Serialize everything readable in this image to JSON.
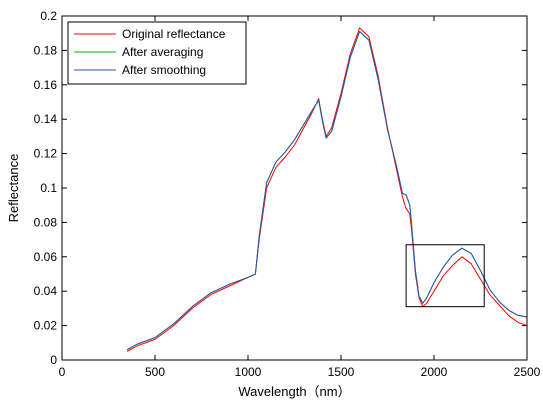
{
  "chart_data": {
    "type": "line",
    "title": "",
    "xlabel": "Wavelength（nm）",
    "ylabel": "Reflectance",
    "xlim": [
      0,
      2500
    ],
    "ylim": [
      0,
      0.2
    ],
    "x_ticks": [
      "0",
      "500",
      "1000",
      "1500",
      "2000",
      "2500"
    ],
    "y_ticks": [
      "0",
      "0.02",
      "0.04",
      "0.06",
      "0.08",
      "0.1",
      "0.12",
      "0.14",
      "0.16",
      "0.18",
      "0.2"
    ],
    "grid": false,
    "legend_position": "top-left",
    "series": [
      {
        "name": "Original reflectance",
        "color": "#ff0000",
        "x": [
          350,
          400,
          500,
          600,
          700,
          800,
          900,
          1000,
          1040,
          1060,
          1100,
          1150,
          1200,
          1250,
          1300,
          1350,
          1380,
          1400,
          1420,
          1450,
          1500,
          1550,
          1600,
          1650,
          1700,
          1750,
          1800,
          1830,
          1850,
          1870,
          1880,
          1900,
          1920,
          1940,
          1960,
          2000,
          2050,
          2100,
          2150,
          2200,
          2250,
          2300,
          2350,
          2400,
          2450,
          2500
        ],
        "y": [
          0.005,
          0.008,
          0.012,
          0.02,
          0.03,
          0.038,
          0.043,
          0.048,
          0.05,
          0.07,
          0.1,
          0.112,
          0.118,
          0.125,
          0.135,
          0.145,
          0.152,
          0.14,
          0.13,
          0.135,
          0.155,
          0.178,
          0.193,
          0.188,
          0.165,
          0.135,
          0.11,
          0.095,
          0.088,
          0.085,
          0.075,
          0.05,
          0.036,
          0.031,
          0.033,
          0.04,
          0.049,
          0.055,
          0.06,
          0.056,
          0.047,
          0.038,
          0.032,
          0.026,
          0.022,
          0.02
        ]
      },
      {
        "name": "After averaging",
        "color": "#00b000",
        "x": [
          350,
          400,
          500,
          600,
          700,
          800,
          900,
          1000,
          1040,
          1060,
          1100,
          1150,
          1200,
          1250,
          1300,
          1350,
          1380,
          1400,
          1420,
          1450,
          1500,
          1550,
          1600,
          1650,
          1700,
          1750,
          1800,
          1830,
          1850,
          1870,
          1880,
          1900,
          1920,
          1940,
          1960,
          2000,
          2050,
          2100,
          2150,
          2200,
          2250,
          2300,
          2350,
          2400,
          2450,
          2500
        ],
        "y": [
          0.006,
          0.009,
          0.013,
          0.021,
          0.031,
          0.039,
          0.044,
          0.048,
          0.05,
          0.072,
          0.103,
          0.115,
          0.121,
          0.128,
          0.137,
          0.146,
          0.151,
          0.139,
          0.129,
          0.133,
          0.153,
          0.176,
          0.191,
          0.186,
          0.163,
          0.134,
          0.112,
          0.097,
          0.096,
          0.09,
          0.078,
          0.052,
          0.037,
          0.033,
          0.036,
          0.045,
          0.054,
          0.061,
          0.065,
          0.062,
          0.052,
          0.041,
          0.034,
          0.029,
          0.026,
          0.025
        ]
      },
      {
        "name": "After smoothing",
        "color": "#3050b0",
        "x": [
          350,
          400,
          500,
          600,
          700,
          800,
          900,
          1000,
          1040,
          1060,
          1100,
          1150,
          1200,
          1250,
          1300,
          1350,
          1380,
          1400,
          1420,
          1450,
          1500,
          1550,
          1600,
          1650,
          1700,
          1750,
          1800,
          1830,
          1850,
          1870,
          1880,
          1900,
          1920,
          1940,
          1960,
          2000,
          2050,
          2100,
          2150,
          2200,
          2250,
          2300,
          2350,
          2400,
          2450,
          2500
        ],
        "y": [
          0.006,
          0.009,
          0.013,
          0.021,
          0.031,
          0.039,
          0.044,
          0.048,
          0.05,
          0.072,
          0.103,
          0.115,
          0.121,
          0.128,
          0.137,
          0.146,
          0.151,
          0.139,
          0.129,
          0.133,
          0.153,
          0.176,
          0.191,
          0.186,
          0.163,
          0.134,
          0.112,
          0.097,
          0.096,
          0.09,
          0.078,
          0.052,
          0.037,
          0.033,
          0.036,
          0.045,
          0.054,
          0.061,
          0.065,
          0.062,
          0.052,
          0.041,
          0.034,
          0.029,
          0.026,
          0.025
        ]
      }
    ],
    "annotations": [
      {
        "type": "rectangle",
        "x_range": [
          1850,
          2270
        ],
        "y_range": [
          0.031,
          0.067
        ]
      }
    ]
  }
}
